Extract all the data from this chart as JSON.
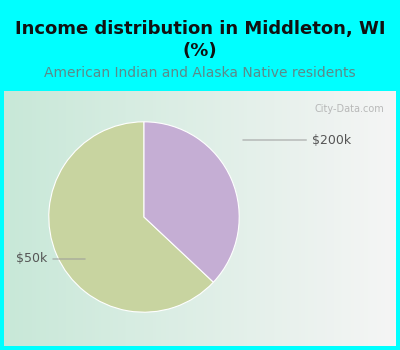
{
  "title": "Income distribution in Middleton, WI\n(%)",
  "subtitle": "American Indian and Alaska Native residents",
  "title_fontsize": 13,
  "subtitle_fontsize": 10,
  "title_color": "#111111",
  "subtitle_color": "#5B8A8A",
  "slices": [
    0.63,
    0.37
  ],
  "slice_labels": [
    "$50k",
    "$200k"
  ],
  "slice_colors": [
    "#c8d4a0",
    "#c5aed4"
  ],
  "bg_color": "#00FFFF",
  "box_bg_left": "#c8e8d8",
  "box_bg_right": "#f0f0f0",
  "label_color": "#555555",
  "label_fontsize": 9,
  "startangle": 90,
  "watermark": "City-Data.com",
  "watermark_color": "#aaaaaa"
}
